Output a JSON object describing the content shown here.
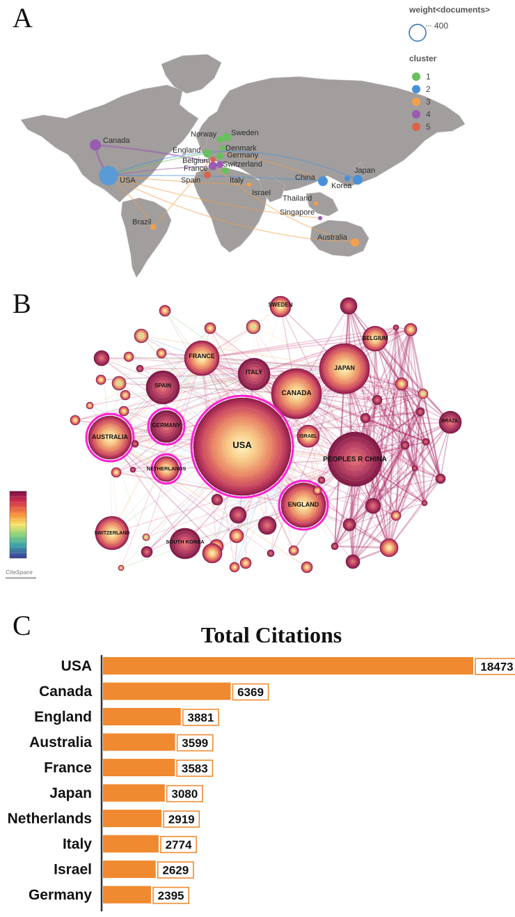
{
  "panelA": {
    "letter": "A",
    "legend": {
      "weight_title": "weight<documents>",
      "weight_value": "400",
      "cluster_title": "cluster",
      "clusters": [
        {
          "label": "1",
          "color": "#6abf5e"
        },
        {
          "label": "2",
          "color": "#4a90d9"
        },
        {
          "label": "3",
          "color": "#f2a04c"
        },
        {
          "label": "4",
          "color": "#9a5bb0"
        },
        {
          "label": "5",
          "color": "#d9644a"
        }
      ]
    },
    "countries": [
      "Canada",
      "Norway",
      "Sweden",
      "Denmark",
      "England",
      "Germany",
      "Belgium",
      "Switzerland",
      "France",
      "Spain",
      "USA",
      "Italy",
      "Israel",
      "China",
      "Japan",
      "Korea",
      "Thailand",
      "Singapore",
      "Brazil",
      "Australia"
    ]
  },
  "panelB": {
    "letter": "B",
    "nodes": [
      "SWEDEN",
      "BELGIUM",
      "FRANCE",
      "ITALY",
      "JAPAN",
      "SPAIN",
      "CANADA",
      "GERMANY",
      "AUSTRALIA",
      "USA",
      "ISRAEL",
      "BRAZIL",
      "PEOPLES R CHINA",
      "NETHERLANDS",
      "SWITZERLAND",
      "SOUTH KOREA",
      "ENGLAND"
    ],
    "logo": "CiteSpace"
  },
  "panelC": {
    "letter": "C",
    "chart_data": {
      "type": "bar",
      "orientation": "horizontal",
      "title": "Total Citations",
      "categories": [
        "USA",
        "Canada",
        "England",
        "Australia",
        "France",
        "Japan",
        "Netherlands",
        "Italy",
        "Israel",
        "Germany"
      ],
      "values": [
        18473,
        6369,
        3881,
        3599,
        3583,
        3080,
        2919,
        2774,
        2629,
        2395
      ],
      "bar_color": "#f08a30",
      "label_border_color": "#f08a30"
    }
  }
}
